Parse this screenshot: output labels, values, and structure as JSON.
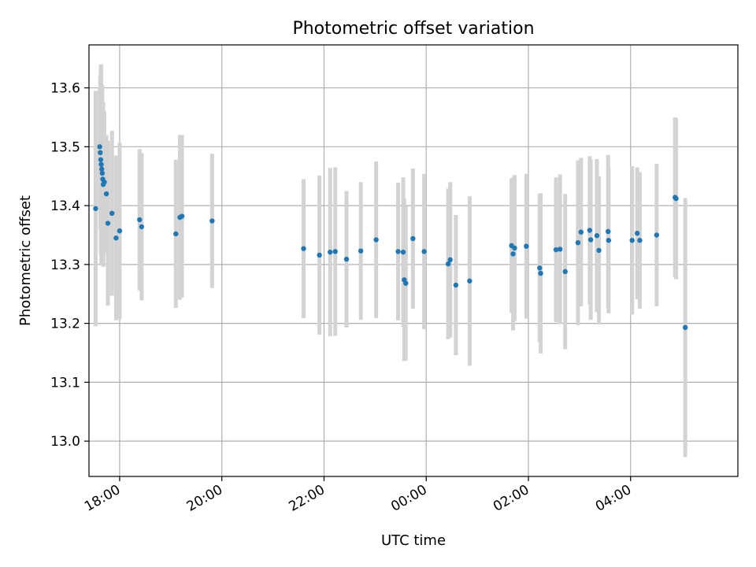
{
  "chart_data": {
    "type": "scatter",
    "title": "Photometric offset variation",
    "xlabel": "UTC time",
    "ylabel": "Photometric offset",
    "x_axis_kind": "time",
    "x_start_label": "17:00",
    "x_range": [
      17.4,
      30.1
    ],
    "xticks": [
      {
        "t": 18,
        "label": "18:00"
      },
      {
        "t": 20,
        "label": "20:00"
      },
      {
        "t": 22,
        "label": "22:00"
      },
      {
        "t": 24,
        "label": "00:00"
      },
      {
        "t": 26,
        "label": "02:00"
      },
      {
        "t": 28,
        "label": "04:00"
      }
    ],
    "ylim": [
      12.94,
      13.673
    ],
    "yticks": [
      13.0,
      13.1,
      13.2,
      13.3,
      13.4,
      13.5,
      13.6
    ],
    "ytick_labels": [
      "13.0",
      "13.1",
      "13.2",
      "13.3",
      "13.4",
      "13.5",
      "13.6"
    ],
    "grid": true,
    "marker_color": "#1f77b4",
    "errorbar_color": "#d3d3d3",
    "series": [
      {
        "x": [
          17.53,
          17.61,
          17.62,
          17.63,
          17.64,
          17.65,
          17.66,
          17.67,
          17.68,
          17.7,
          17.74,
          17.77,
          17.85,
          17.93,
          18.0,
          18.39,
          18.43,
          19.1,
          19.18,
          19.22,
          19.81,
          21.6,
          21.91,
          22.12,
          22.22,
          22.44,
          22.72,
          23.02,
          23.45,
          23.55,
          23.57,
          23.6,
          23.74,
          23.96,
          24.43,
          24.47,
          24.58,
          24.85,
          25.67,
          25.7,
          25.73,
          25.96,
          26.22,
          26.24,
          26.54,
          26.62,
          26.72,
          26.97,
          27.03,
          27.2,
          27.22,
          27.34,
          27.38,
          27.56,
          27.57,
          28.03,
          28.13,
          28.18,
          28.51,
          28.87,
          28.89,
          29.07
        ],
        "y": [
          13.395,
          13.5,
          13.49,
          13.478,
          13.47,
          13.462,
          13.455,
          13.445,
          13.436,
          13.44,
          13.42,
          13.37,
          13.387,
          13.345,
          13.357,
          13.376,
          13.364,
          13.352,
          13.38,
          13.382,
          13.374,
          13.327,
          13.316,
          13.321,
          13.322,
          13.309,
          13.323,
          13.342,
          13.322,
          13.321,
          13.274,
          13.268,
          13.344,
          13.322,
          13.301,
          13.308,
          13.265,
          13.272,
          13.332,
          13.318,
          13.328,
          13.331,
          13.294,
          13.285,
          13.325,
          13.326,
          13.288,
          13.337,
          13.355,
          13.358,
          13.342,
          13.349,
          13.324,
          13.356,
          13.341,
          13.341,
          13.353,
          13.341,
          13.35,
          13.414,
          13.412,
          13.193
        ],
        "err": [
          0.2,
          0.1,
          0.13,
          0.16,
          0.17,
          0.14,
          0.15,
          0.12,
          0.14,
          0.12,
          0.1,
          0.14,
          0.14,
          0.14,
          0.15,
          0.12,
          0.125,
          0.126,
          0.14,
          0.138,
          0.114,
          0.118,
          0.135,
          0.143,
          0.143,
          0.116,
          0.117,
          0.133,
          0.117,
          0.127,
          0.138,
          0.131,
          0.119,
          0.132,
          0.128,
          0.132,
          0.119,
          0.144,
          0.114,
          0.13,
          0.124,
          0.123,
          0.126,
          0.136,
          0.123,
          0.127,
          0.132,
          0.14,
          0.126,
          0.126,
          0.136,
          0.13,
          0.126,
          0.13,
          0.124,
          0.126,
          0.112,
          0.116,
          0.121,
          0.136,
          0.137,
          0.22
        ]
      }
    ]
  }
}
